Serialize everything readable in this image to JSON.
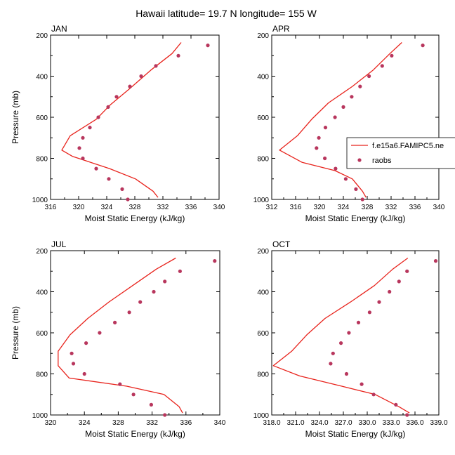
{
  "figure": {
    "title": "Hawaii  latitude= 19.7 N longitude= 155 W",
    "legend": {
      "model_label": "f.e15a6.FAMIPC5.ne",
      "obs_label": "raobs",
      "placement": "right of APR panel"
    },
    "colors": {
      "model_line": "#e8231c",
      "obs_marker": "#b8365d",
      "axes": "#000000"
    }
  },
  "chart_data": [
    {
      "type": "line",
      "panel": "JAN",
      "title": "JAN",
      "xlabel": "Moist Static Energy (kJ/kg)",
      "ylabel": "Pressure (mb)",
      "xlim": [
        316,
        340
      ],
      "ylim": [
        1000,
        200
      ],
      "xticks": [
        316,
        320,
        324,
        328,
        332,
        336,
        340
      ],
      "xtick_labels": [
        "316",
        "320",
        "324",
        "328",
        "332",
        "336",
        "340"
      ],
      "yticks": [
        200,
        400,
        600,
        800,
        1000
      ],
      "ytick_labels": [
        "200",
        "400",
        "600",
        "800",
        "1000"
      ],
      "series": [
        {
          "name": "f.e15a6.FAMIPC5.ne",
          "kind": "line",
          "x": [
            334.6,
            333.3,
            330.3,
            327.3,
            324.5,
            322.5,
            318.8,
            317.6,
            319.1,
            324.4,
            328.1,
            330.6,
            331.3
          ],
          "y": [
            236,
            290,
            370,
            460,
            540,
            610,
            690,
            760,
            790,
            850,
            900,
            960,
            990
          ]
        },
        {
          "name": "raobs",
          "kind": "scatter",
          "x": [
            338.4,
            334.2,
            331.0,
            328.9,
            327.3,
            325.4,
            324.2,
            322.8,
            321.6,
            320.6,
            320.1,
            320.6,
            322.5,
            324.3,
            326.2,
            327.0
          ],
          "y": [
            250,
            300,
            350,
            400,
            450,
            500,
            550,
            600,
            650,
            700,
            750,
            800,
            850,
            900,
            950,
            1000
          ]
        }
      ]
    },
    {
      "type": "line",
      "panel": "APR",
      "title": "APR",
      "xlabel": "Moist Static Energy (kJ/kg)",
      "ylabel": "",
      "xlim": [
        312,
        340
      ],
      "ylim": [
        1000,
        200
      ],
      "xticks": [
        312,
        316,
        320,
        324,
        328,
        332,
        336,
        340
      ],
      "xtick_labels": [
        "312",
        "316",
        "320",
        "324",
        "328",
        "332",
        "336",
        "340"
      ],
      "yticks": [
        200,
        400,
        600,
        800,
        1000
      ],
      "ytick_labels": [
        "200",
        "400",
        "600",
        "800",
        "1000"
      ],
      "series": [
        {
          "name": "f.e15a6.FAMIPC5.ne",
          "kind": "line",
          "x": [
            333.8,
            331.8,
            329.0,
            325.5,
            321.5,
            318.7,
            316.3,
            313.3,
            317.1,
            322.6,
            325.5,
            327.2,
            327.8
          ],
          "y": [
            236,
            290,
            370,
            450,
            530,
            610,
            690,
            760,
            820,
            860,
            900,
            960,
            990
          ]
        },
        {
          "name": "raobs",
          "kind": "scatter",
          "x": [
            337.3,
            332.1,
            330.5,
            328.3,
            326.8,
            325.4,
            324.0,
            322.6,
            321.0,
            319.9,
            319.5,
            320.9,
            322.7,
            324.4,
            326.1,
            327.2
          ],
          "y": [
            250,
            300,
            350,
            400,
            450,
            500,
            550,
            600,
            650,
            700,
            750,
            800,
            850,
            900,
            950,
            1000
          ]
        }
      ]
    },
    {
      "type": "line",
      "panel": "JUL",
      "title": "JUL",
      "xlabel": "Moist Static Energy (kJ/kg)",
      "ylabel": "Pressure (mb)",
      "xlim": [
        320,
        340
      ],
      "ylim": [
        1000,
        200
      ],
      "xticks": [
        320,
        324,
        328,
        332,
        336,
        340
      ],
      "xtick_labels": [
        "320",
        "324",
        "328",
        "332",
        "336",
        "340"
      ],
      "yticks": [
        200,
        400,
        600,
        800,
        1000
      ],
      "ytick_labels": [
        "200",
        "400",
        "600",
        "800",
        "1000"
      ],
      "series": [
        {
          "name": "f.e15a6.FAMIPC5.ne",
          "kind": "line",
          "x": [
            334.8,
            332.5,
            329.7,
            326.9,
            324.4,
            322.3,
            320.9,
            320.9,
            322.2,
            329.0,
            333.4,
            335.2,
            335.6
          ],
          "y": [
            236,
            290,
            370,
            450,
            530,
            610,
            690,
            760,
            820,
            860,
            900,
            960,
            990
          ]
        },
        {
          "name": "raobs",
          "kind": "scatter",
          "x": [
            339.4,
            335.3,
            333.5,
            332.2,
            330.6,
            329.3,
            327.6,
            325.8,
            324.2,
            322.5,
            322.7,
            324.0,
            328.2,
            329.8,
            331.9,
            333.5
          ],
          "y": [
            250,
            300,
            350,
            400,
            450,
            500,
            550,
            600,
            650,
            700,
            750,
            800,
            850,
            900,
            950,
            1000
          ]
        }
      ]
    },
    {
      "type": "line",
      "panel": "OCT",
      "title": "OCT",
      "xlabel": "Moist Static Energy (kJ/kg)",
      "ylabel": "",
      "xlim": [
        318,
        339
      ],
      "ylim": [
        1000,
        200
      ],
      "xticks": [
        318,
        321,
        324,
        327,
        330,
        333,
        336,
        339
      ],
      "xtick_labels": [
        "318.0",
        "321.0",
        "324.0",
        "327.0",
        "330.0",
        "333.0",
        "336.0",
        "339.0"
      ],
      "yticks": [
        200,
        400,
        600,
        800,
        1000
      ],
      "ytick_labels": [
        "200",
        "400",
        "600",
        "800",
        "1000"
      ],
      "series": [
        {
          "name": "f.e15a6.FAMIPC5.ne",
          "kind": "line",
          "x": [
            335.1,
            333.2,
            330.9,
            327.9,
            324.7,
            322.4,
            320.5,
            318.2,
            321.5,
            326.8,
            331.0,
            334.0,
            335.3
          ],
          "y": [
            236,
            290,
            370,
            450,
            530,
            610,
            690,
            760,
            810,
            860,
            900,
            960,
            990
          ]
        },
        {
          "name": "raobs",
          "kind": "scatter",
          "x": [
            338.6,
            335.0,
            334.0,
            332.8,
            331.5,
            330.3,
            328.9,
            327.7,
            326.7,
            325.7,
            325.4,
            327.4,
            329.3,
            330.8,
            333.6,
            335.0
          ],
          "y": [
            250,
            300,
            350,
            400,
            450,
            500,
            550,
            600,
            650,
            700,
            750,
            800,
            850,
            900,
            950,
            1000
          ]
        }
      ]
    }
  ]
}
